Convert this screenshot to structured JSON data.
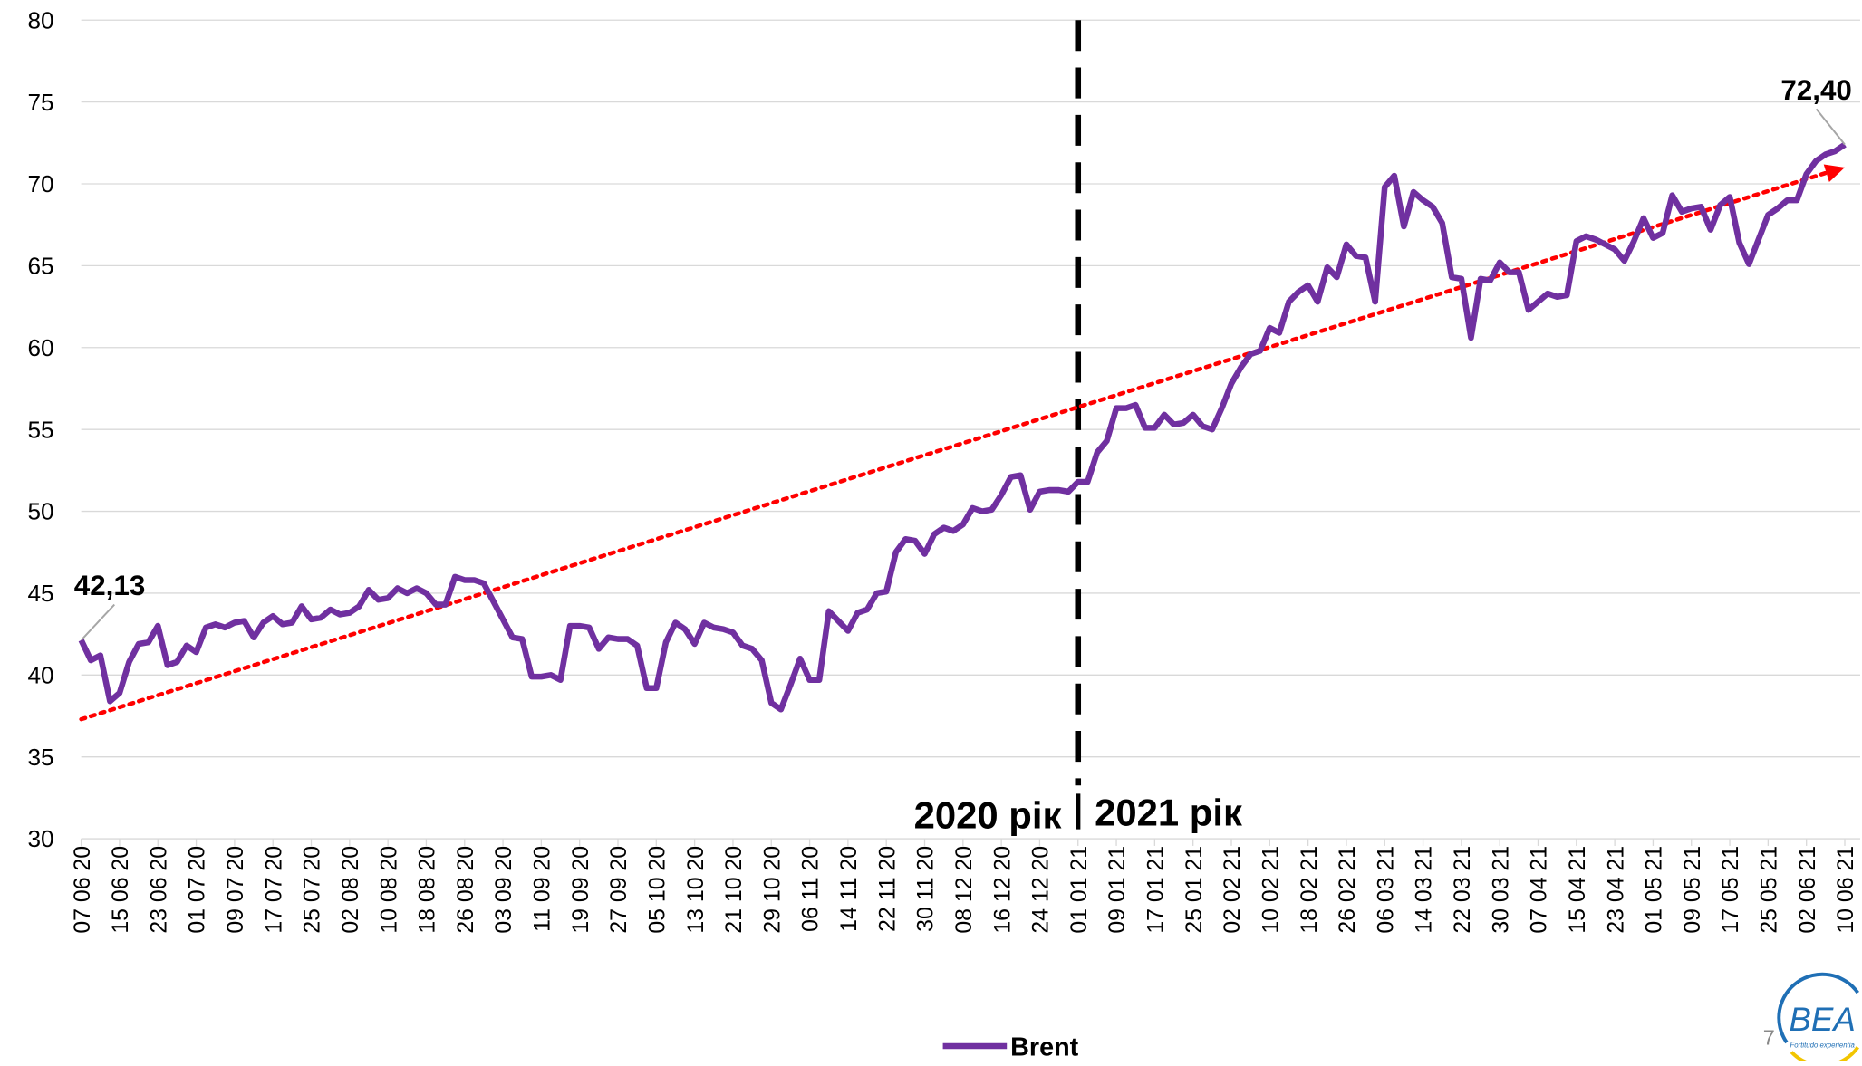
{
  "chart_data": {
    "type": "line",
    "categories": [
      "07 06 20",
      null,
      null,
      null,
      "15 06 20",
      null,
      null,
      null,
      "23 06 20",
      null,
      null,
      null,
      "01 07 20",
      null,
      null,
      null,
      "09 07 20",
      null,
      null,
      null,
      "17 07 20",
      null,
      null,
      null,
      "25 07 20",
      null,
      null,
      null,
      "02 08 20",
      null,
      null,
      null,
      "10 08 20",
      null,
      null,
      null,
      "18 08 20",
      null,
      null,
      null,
      "26 08 20",
      null,
      null,
      null,
      "03 09 20",
      null,
      null,
      null,
      "11 09 20",
      null,
      null,
      null,
      "19 09 20",
      null,
      null,
      null,
      "27 09 20",
      null,
      null,
      null,
      "05 10 20",
      null,
      null,
      null,
      "13 10 20",
      null,
      null,
      null,
      "21 10 20",
      null,
      null,
      null,
      "29 10 20",
      null,
      null,
      null,
      "06 11 20",
      null,
      null,
      null,
      "14 11 20",
      null,
      null,
      null,
      "22 11 20",
      null,
      null,
      null,
      "30 11 20",
      null,
      null,
      null,
      "08 12 20",
      null,
      null,
      null,
      "16 12 20",
      null,
      null,
      null,
      "24 12 20",
      null,
      null,
      null,
      "01 01 21",
      null,
      null,
      null,
      "09 01 21",
      null,
      null,
      null,
      "17 01 21",
      null,
      null,
      null,
      "25 01 21",
      null,
      null,
      null,
      "02 02 21",
      null,
      null,
      null,
      "10 02 21",
      null,
      null,
      null,
      "18 02 21",
      null,
      null,
      null,
      "26 02 21",
      null,
      null,
      null,
      "06 03 21",
      null,
      null,
      null,
      "14 03 21",
      null,
      null,
      null,
      "22 03 21",
      null,
      null,
      null,
      "30 03 21",
      null,
      null,
      null,
      "07 04 21",
      null,
      null,
      null,
      "15 04 21",
      null,
      null,
      null,
      "23 04 21",
      null,
      null,
      null,
      "01 05 21",
      null,
      null,
      null,
      "09 05 21",
      null,
      null,
      null,
      "17 05 21",
      null,
      null,
      null,
      "25 05 21",
      null,
      null,
      null,
      "02 06 21",
      null,
      null,
      null,
      "10 06 21"
    ],
    "series": [
      {
        "name": "Brent",
        "color": "#7030a0",
        "values": [
          42.13,
          40.9,
          41.2,
          38.4,
          38.9,
          40.8,
          41.9,
          42.0,
          43.0,
          40.6,
          40.8,
          41.8,
          41.4,
          42.9,
          43.1,
          42.9,
          43.2,
          43.3,
          42.3,
          43.2,
          43.6,
          43.1,
          43.2,
          44.2,
          43.4,
          43.5,
          44.0,
          43.7,
          43.8,
          44.2,
          45.2,
          44.6,
          44.7,
          45.3,
          45.0,
          45.3,
          45.0,
          44.3,
          44.3,
          46.0,
          45.8,
          45.8,
          45.6,
          44.5,
          43.4,
          42.3,
          42.2,
          39.9,
          39.9,
          40.0,
          39.7,
          43.0,
          43.0,
          42.9,
          41.6,
          42.3,
          42.2,
          42.2,
          41.8,
          39.2,
          39.2,
          42.0,
          43.2,
          42.8,
          41.9,
          43.2,
          42.9,
          42.8,
          42.6,
          41.8,
          41.6,
          40.9,
          38.3,
          37.9,
          39.4,
          41.0,
          39.7,
          39.7,
          43.9,
          43.3,
          42.7,
          43.8,
          44.0,
          45.0,
          45.1,
          47.5,
          48.3,
          48.2,
          47.4,
          48.6,
          49.0,
          48.8,
          49.2,
          50.2,
          50.0,
          50.1,
          51.0,
          52.1,
          52.2,
          50.1,
          51.2,
          51.3,
          51.3,
          51.2,
          51.8,
          51.8,
          53.6,
          54.3,
          56.3,
          56.3,
          56.5,
          55.1,
          55.1,
          55.9,
          55.3,
          55.4,
          55.9,
          55.2,
          55.0,
          56.3,
          57.8,
          58.8,
          59.6,
          59.8,
          61.2,
          60.9,
          62.8,
          63.4,
          63.8,
          62.8,
          64.9,
          64.3,
          66.3,
          65.6,
          65.5,
          62.8,
          69.8,
          70.5,
          67.4,
          69.5,
          69.0,
          68.6,
          67.6,
          64.3,
          64.2,
          60.6,
          64.2,
          64.1,
          65.2,
          64.6,
          64.6,
          62.3,
          62.8,
          63.3,
          63.1,
          63.2,
          66.5,
          66.8,
          66.6,
          66.3,
          66.0,
          65.3,
          66.5,
          67.9,
          66.7,
          67.0,
          69.3,
          68.3,
          68.5,
          68.6,
          67.2,
          68.7,
          69.2,
          66.4,
          65.1,
          66.6,
          68.1,
          68.5,
          69.0,
          69.0,
          70.6,
          71.4,
          71.8,
          72.0,
          72.4
        ],
        "value_labels": [
          "42,13",
          null,
          null,
          null,
          null,
          null,
          null,
          null,
          null,
          null,
          null,
          null,
          null,
          null,
          null,
          null,
          null,
          null,
          null,
          null,
          null,
          null,
          null,
          null,
          null,
          null,
          null,
          null,
          null,
          null,
          null,
          null,
          null,
          null,
          null,
          null,
          null,
          null,
          null,
          null,
          null,
          null,
          null,
          null,
          null,
          null,
          null,
          null,
          null,
          null,
          null,
          null,
          null,
          null,
          null,
          null,
          null,
          null,
          null,
          null,
          null,
          null,
          null,
          null,
          null,
          null,
          null,
          null,
          null,
          null,
          null,
          null,
          null,
          null,
          null,
          null,
          null,
          null,
          null,
          null,
          null,
          null,
          null,
          null,
          null,
          null,
          null,
          null,
          null,
          null,
          null,
          null,
          null,
          null,
          null,
          null,
          null,
          null,
          null,
          null,
          null,
          null,
          null,
          null,
          null,
          null,
          null,
          null,
          null,
          null,
          null,
          null,
          null,
          null,
          null,
          null,
          null,
          null,
          null,
          null,
          null,
          null,
          null,
          null,
          null,
          null,
          null,
          null,
          null,
          null,
          null,
          null,
          null,
          null,
          null,
          null,
          null,
          null,
          null,
          null,
          null,
          null,
          null,
          null,
          null,
          null,
          null,
          null,
          null,
          null,
          null,
          null,
          null,
          null,
          null,
          null,
          null,
          null,
          null,
          null,
          null,
          null,
          null,
          null,
          null,
          null,
          null,
          null,
          null,
          null,
          null,
          null,
          null,
          null,
          null,
          null,
          null,
          null,
          null,
          null,
          null,
          null,
          null,
          null,
          "72,40"
        ]
      }
    ],
    "trendline": {
      "color": "#ff0000",
      "values": [
        37.3,
        71.0
      ]
    },
    "divider": {
      "category": "01 01 21",
      "left_label": "2020 рік",
      "right_label": "2021 рік"
    },
    "ylim": [
      30,
      80
    ],
    "yticks": [
      30,
      35,
      40,
      45,
      50,
      55,
      60,
      65,
      70,
      75,
      80
    ],
    "grid": true,
    "legend": "bottom",
    "page_number": "7",
    "logo": {
      "text": "BEA",
      "motto": "Fortitudo experientia"
    }
  }
}
